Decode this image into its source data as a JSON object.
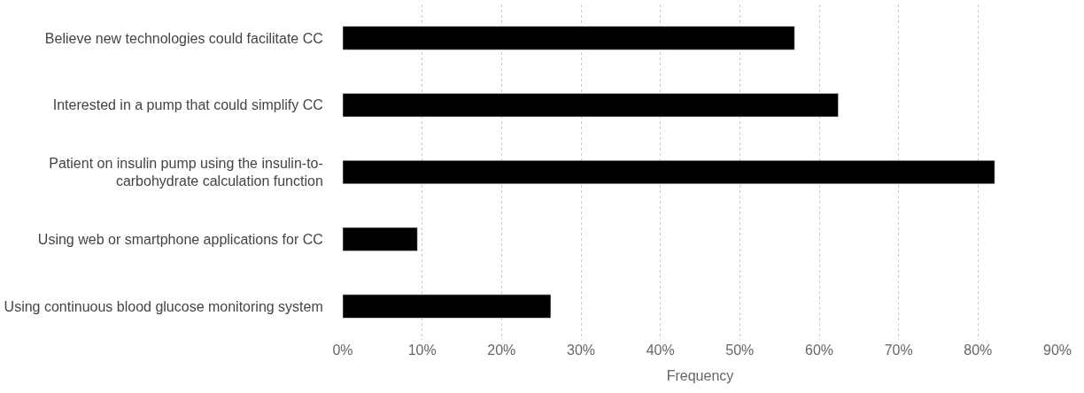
{
  "chart_data": {
    "type": "bar",
    "orientation": "horizontal",
    "xlabel": "Frequency",
    "categories": [
      "Believe new technologies could facilitate CC",
      "Interested in a pump that could simplify CC",
      "Patient on insulin pump using the insulin-to-\ncarbohydrate calculation function",
      "Using web or smartphone applications for CC",
      "Using continuous blood glucose monitoring system"
    ],
    "values": [
      56.9,
      62.4,
      82.1,
      9.4,
      26.2
    ],
    "color": "#000000",
    "xlim": [
      0,
      90
    ],
    "xticks": [
      {
        "value": 0,
        "label": "0%"
      },
      {
        "value": 10,
        "label": "10%"
      },
      {
        "value": 20,
        "label": "20%"
      },
      {
        "value": 30,
        "label": "30%"
      },
      {
        "value": 40,
        "label": "40%"
      },
      {
        "value": 50,
        "label": "50%"
      },
      {
        "value": 60,
        "label": "60%"
      },
      {
        "value": 70,
        "label": "70%"
      },
      {
        "value": 80,
        "label": "80%"
      },
      {
        "value": 90,
        "label": "90%"
      }
    ],
    "grid": "x",
    "legend": false
  }
}
